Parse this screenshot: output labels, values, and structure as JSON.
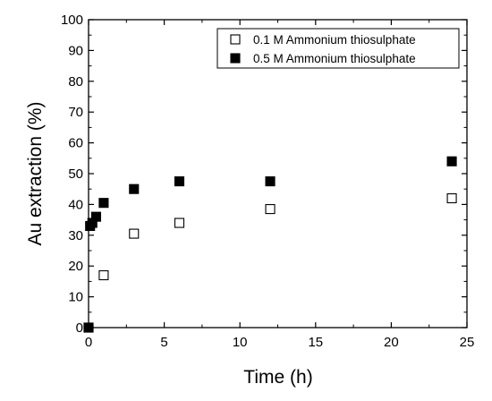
{
  "chart_data": {
    "type": "scatter",
    "title": "",
    "xlabel": "Time (h)",
    "ylabel": "Au extraction (%)",
    "xlim": [
      0,
      25
    ],
    "ylim": [
      0,
      100
    ],
    "xticks": [
      0,
      5,
      10,
      15,
      20,
      25
    ],
    "yticks": [
      0,
      10,
      20,
      30,
      40,
      50,
      60,
      70,
      80,
      90,
      100
    ],
    "grid": false,
    "legend_position": "top-right",
    "series": [
      {
        "name": "0.1 M Ammonium thiosulphate",
        "marker": "open-square",
        "color": "#000000",
        "points": [
          {
            "x": 0,
            "y": 0
          },
          {
            "x": 1,
            "y": 17
          },
          {
            "x": 3,
            "y": 30.5
          },
          {
            "x": 6,
            "y": 34
          },
          {
            "x": 12,
            "y": 38.5
          },
          {
            "x": 24,
            "y": 42
          }
        ]
      },
      {
        "name": "0.5 M Ammonium thiosulphate",
        "marker": "filled-square",
        "color": "#000000",
        "points": [
          {
            "x": 0,
            "y": 0
          },
          {
            "x": 0.1,
            "y": 33
          },
          {
            "x": 0.25,
            "y": 34
          },
          {
            "x": 0.5,
            "y": 36
          },
          {
            "x": 1,
            "y": 40.5
          },
          {
            "x": 3,
            "y": 45
          },
          {
            "x": 6,
            "y": 47.5
          },
          {
            "x": 12,
            "y": 47.5
          },
          {
            "x": 24,
            "y": 54
          }
        ]
      }
    ]
  }
}
